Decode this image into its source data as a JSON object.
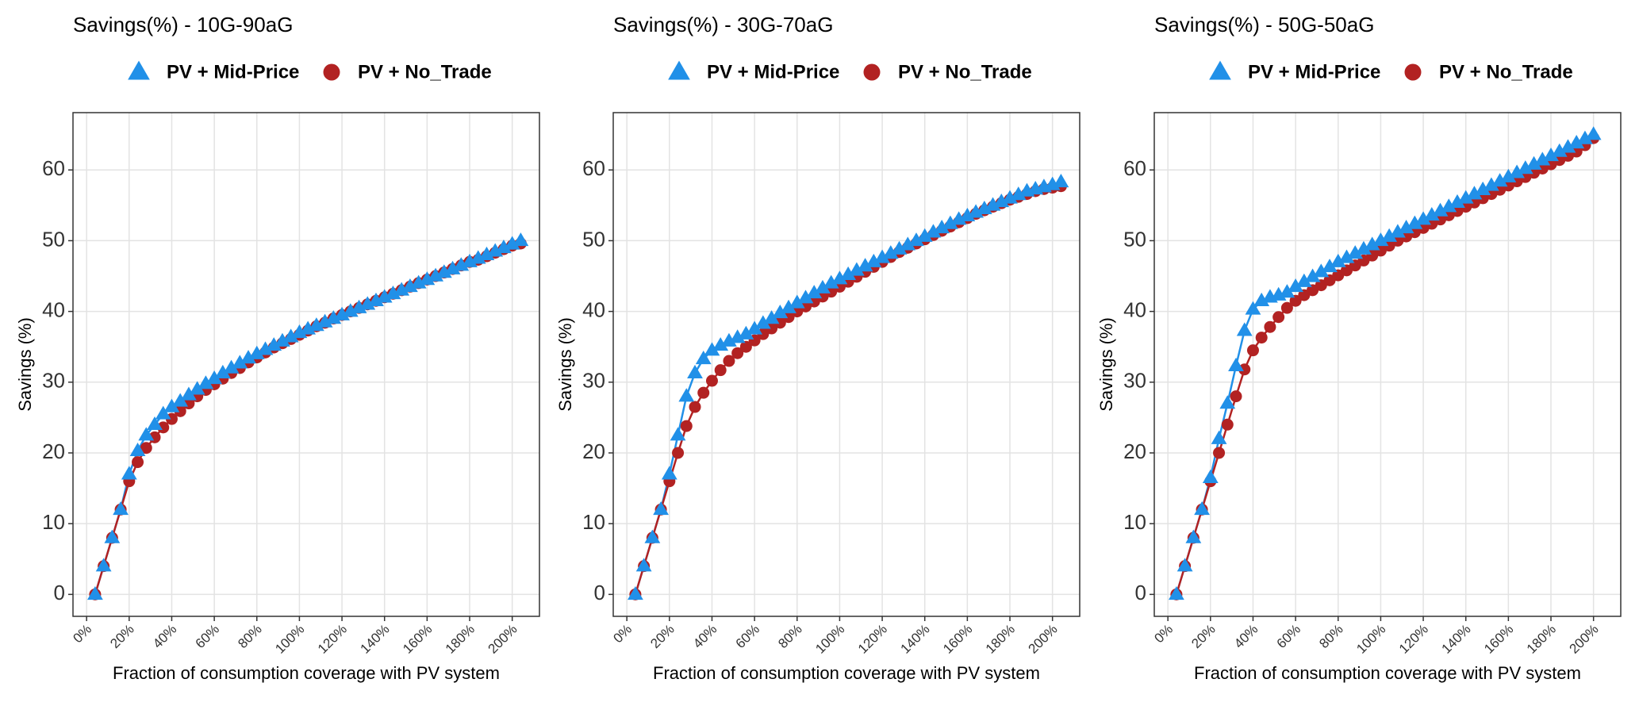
{
  "chart_data": [
    {
      "type": "line",
      "title": "Savings(%) - 10G-90aG",
      "xlabel": "Fraction of consumption coverage with PV system",
      "ylabel": "Savings (%)",
      "x": [
        4,
        8,
        12,
        16,
        20,
        24,
        28,
        32,
        36,
        40,
        44,
        48,
        52,
        56,
        60,
        64,
        68,
        72,
        76,
        80,
        84,
        88,
        92,
        96,
        100,
        104,
        108,
        112,
        116,
        120,
        124,
        128,
        132,
        136,
        140,
        144,
        148,
        152,
        156,
        160,
        164,
        168,
        172,
        176,
        180,
        184,
        188,
        192,
        196,
        200,
        204
      ],
      "series": [
        {
          "name": "PV + Mid-Price",
          "color": "#2190e8",
          "marker": "triangle",
          "values": [
            0,
            4,
            8,
            12,
            17,
            20.3,
            22.5,
            24,
            25.5,
            26.5,
            27.3,
            28.2,
            29,
            29.8,
            30.5,
            31.3,
            32,
            32.7,
            33.4,
            34,
            34.6,
            35.2,
            35.8,
            36.4,
            37,
            37.5,
            38,
            38.5,
            39,
            39.5,
            40,
            40.5,
            41,
            41.5,
            42,
            42.5,
            43,
            43.5,
            44,
            44.5,
            45,
            45.5,
            46,
            46.5,
            47,
            47.5,
            48,
            48.5,
            49,
            49.5,
            50
          ]
        },
        {
          "name": "PV + No_Trade",
          "color": "#b22222",
          "marker": "circle",
          "values": [
            0,
            4,
            8,
            12,
            16,
            18.7,
            20.7,
            22.2,
            23.6,
            24.8,
            25.9,
            27,
            28,
            28.9,
            29.7,
            30.5,
            31.3,
            32,
            32.8,
            33.5,
            34.2,
            34.9,
            35.5,
            36.1,
            36.7,
            37.3,
            37.9,
            38.4,
            39,
            39.5,
            40,
            40.5,
            41,
            41.5,
            42,
            42.5,
            43,
            43.5,
            44,
            44.5,
            45,
            45.5,
            46,
            46.5,
            47,
            47.3,
            47.8,
            48.3,
            48.8,
            49.3,
            49.6
          ]
        }
      ],
      "xlim": [
        -6.4,
        212.8
      ],
      "ylim": [
        -3.1,
        68.1
      ],
      "xticks": [
        {
          "value": 0,
          "label": "0%"
        },
        {
          "value": 20,
          "label": "20%"
        },
        {
          "value": 40,
          "label": "40%"
        },
        {
          "value": 60,
          "label": "60%"
        },
        {
          "value": 80,
          "label": "80%"
        },
        {
          "value": 100,
          "label": "100%"
        },
        {
          "value": 120,
          "label": "120%"
        },
        {
          "value": 140,
          "label": "140%"
        },
        {
          "value": 160,
          "label": "160%"
        },
        {
          "value": 180,
          "label": "180%"
        },
        {
          "value": 200,
          "label": "200%"
        }
      ],
      "yticks": [
        0,
        10,
        20,
        30,
        40,
        50,
        60
      ],
      "grid": true,
      "legend": "top"
    },
    {
      "type": "line",
      "title": "Savings(%) - 30G-70aG",
      "xlabel": "Fraction of consumption coverage with PV system",
      "ylabel": "Savings (%)",
      "x": [
        4,
        8,
        12,
        16,
        20,
        24,
        28,
        32,
        36,
        40,
        44,
        48,
        52,
        56,
        60,
        64,
        68,
        72,
        76,
        80,
        84,
        88,
        92,
        96,
        100,
        104,
        108,
        112,
        116,
        120,
        124,
        128,
        132,
        136,
        140,
        144,
        148,
        152,
        156,
        160,
        164,
        168,
        172,
        176,
        180,
        184,
        188,
        192,
        196,
        200,
        204
      ],
      "series": [
        {
          "name": "PV + Mid-Price",
          "color": "#2190e8",
          "marker": "triangle",
          "values": [
            0,
            4,
            8,
            12,
            17,
            22.5,
            28,
            31.3,
            33.3,
            34.5,
            35.2,
            35.8,
            36.3,
            36.8,
            37.5,
            38.3,
            39,
            39.8,
            40.5,
            41.2,
            41.9,
            42.6,
            43.3,
            44,
            44.6,
            45.2,
            45.8,
            46.4,
            47,
            47.6,
            48.2,
            48.8,
            49.4,
            50,
            50.6,
            51.2,
            51.8,
            52.4,
            53,
            53.5,
            54,
            54.5,
            55,
            55.5,
            56,
            56.5,
            57,
            57.3,
            57.6,
            57.9,
            58.3
          ]
        },
        {
          "name": "PV + No_Trade",
          "color": "#b22222",
          "marker": "circle",
          "values": [
            0,
            4,
            8,
            12,
            16,
            20,
            23.8,
            26.5,
            28.5,
            30.2,
            31.7,
            33,
            34.1,
            35,
            35.9,
            36.8,
            37.6,
            38.4,
            39.2,
            40,
            40.7,
            41.4,
            42.1,
            42.8,
            43.5,
            44.2,
            44.9,
            45.6,
            46.3,
            47,
            47.7,
            48.4,
            49,
            49.6,
            50.2,
            50.8,
            51.4,
            52,
            52.6,
            53.2,
            53.8,
            54.3,
            54.8,
            55.3,
            55.8,
            56.2,
            56.6,
            57,
            57.3,
            57.5,
            57.7
          ]
        }
      ],
      "xlim": [
        -6.4,
        212.8
      ],
      "ylim": [
        -3.1,
        68.1
      ],
      "xticks": [
        {
          "value": 0,
          "label": "0%"
        },
        {
          "value": 20,
          "label": "20%"
        },
        {
          "value": 40,
          "label": "40%"
        },
        {
          "value": 60,
          "label": "60%"
        },
        {
          "value": 80,
          "label": "80%"
        },
        {
          "value": 100,
          "label": "100%"
        },
        {
          "value": 120,
          "label": "120%"
        },
        {
          "value": 140,
          "label": "140%"
        },
        {
          "value": 160,
          "label": "160%"
        },
        {
          "value": 180,
          "label": "180%"
        },
        {
          "value": 200,
          "label": "200%"
        }
      ],
      "yticks": [
        0,
        10,
        20,
        30,
        40,
        50,
        60
      ],
      "grid": true,
      "legend": "top"
    },
    {
      "type": "line",
      "title": "Savings(%) - 50G-50aG",
      "xlabel": "Fraction of consumption coverage with PV system",
      "ylabel": "Savings (%)",
      "x": [
        4,
        8,
        12,
        16,
        20,
        24,
        28,
        32,
        36,
        40,
        44,
        48,
        52,
        56,
        60,
        64,
        68,
        72,
        76,
        80,
        84,
        88,
        92,
        96,
        100,
        104,
        108,
        112,
        116,
        120,
        124,
        128,
        132,
        136,
        140,
        144,
        148,
        152,
        156,
        160,
        164,
        168,
        172,
        176,
        180,
        184,
        188,
        192,
        196,
        200
      ],
      "series": [
        {
          "name": "PV + Mid-Price",
          "color": "#2190e8",
          "marker": "triangle",
          "values": [
            0,
            4,
            8,
            12,
            16.5,
            22,
            27,
            32.3,
            37.3,
            40.3,
            41.5,
            42,
            42.3,
            42.7,
            43.5,
            44.2,
            44.9,
            45.6,
            46.3,
            47,
            47.6,
            48.2,
            48.8,
            49.4,
            50,
            50.6,
            51.2,
            51.8,
            52.4,
            53,
            53.6,
            54.2,
            54.8,
            55.4,
            56,
            56.6,
            57.2,
            57.8,
            58.4,
            59,
            59.6,
            60.2,
            60.8,
            61.4,
            62,
            62.6,
            63.2,
            63.8,
            64.4,
            65
          ]
        },
        {
          "name": "PV + No_Trade",
          "color": "#b22222",
          "marker": "circle",
          "values": [
            0,
            4,
            8,
            12,
            16,
            20,
            24,
            28,
            31.8,
            34.5,
            36.3,
            37.8,
            39.2,
            40.5,
            41.5,
            42.3,
            43,
            43.7,
            44.4,
            45.1,
            45.8,
            46.5,
            47.2,
            47.9,
            48.6,
            49.3,
            50,
            50.6,
            51.2,
            51.8,
            52.4,
            53,
            53.6,
            54.2,
            54.8,
            55.4,
            56,
            56.6,
            57.2,
            57.8,
            58.4,
            59,
            59.6,
            60.2,
            60.8,
            61.4,
            62,
            62.6,
            63.5,
            64.5
          ]
        }
      ],
      "xlim": [
        -6.4,
        212.8
      ],
      "ylim": [
        -3.1,
        68.1
      ],
      "xticks": [
        {
          "value": 0,
          "label": "0%"
        },
        {
          "value": 20,
          "label": "20%"
        },
        {
          "value": 40,
          "label": "40%"
        },
        {
          "value": 60,
          "label": "60%"
        },
        {
          "value": 80,
          "label": "80%"
        },
        {
          "value": 100,
          "label": "100%"
        },
        {
          "value": 120,
          "label": "120%"
        },
        {
          "value": 140,
          "label": "140%"
        },
        {
          "value": 160,
          "label": "160%"
        },
        {
          "value": 180,
          "label": "180%"
        },
        {
          "value": 200,
          "label": "200%"
        }
      ],
      "yticks": [
        0,
        10,
        20,
        30,
        40,
        50,
        60
      ],
      "grid": true,
      "legend": "top"
    }
  ]
}
